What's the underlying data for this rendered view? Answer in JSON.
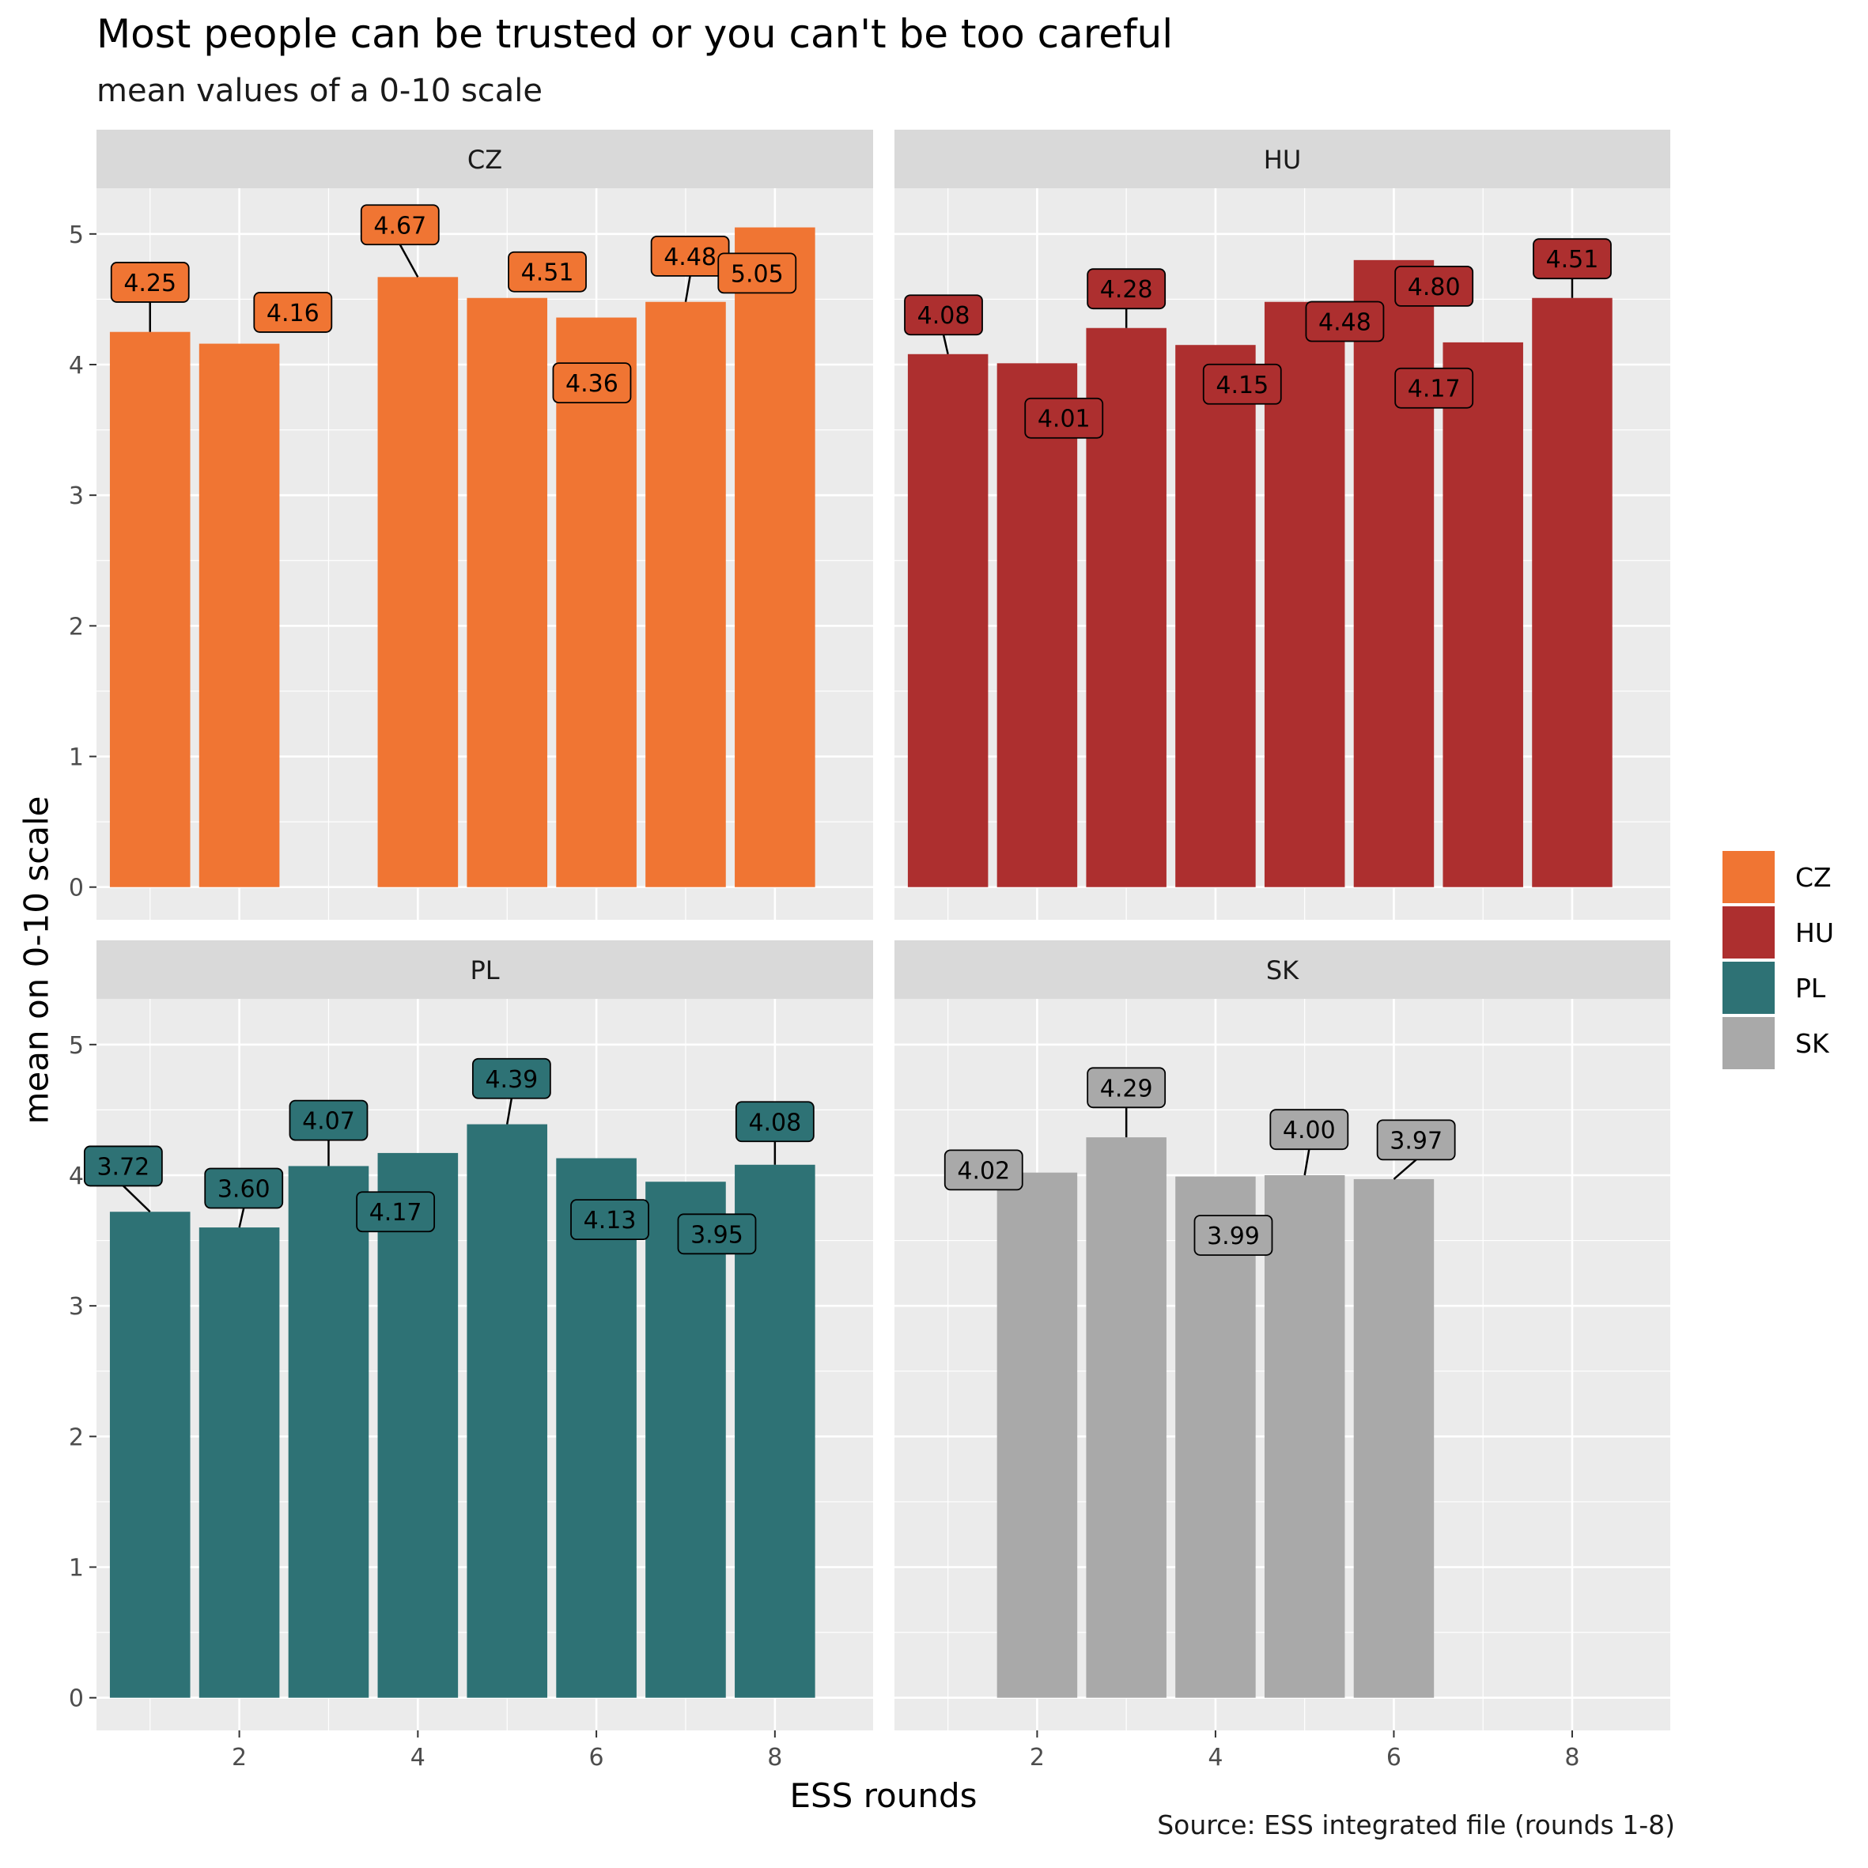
{
  "title": "Most people can be trusted or you can't be too careful",
  "subtitle": "mean values of a 0-10 scale",
  "caption": "Source: ESS integrated file (rounds 1-8)",
  "chart_data": {
    "type": "bar",
    "title": "Most people can be trusted or you can't be too careful",
    "subtitle": "mean values of a 0-10 scale",
    "xlabel": "ESS rounds",
    "ylabel": "mean on 0-10 scale",
    "xlim": [
      0.4,
      9.1
    ],
    "ylim": [
      -0.25,
      5.35
    ],
    "x_ticks": [
      2,
      4,
      6,
      8
    ],
    "y_ticks": [
      0,
      1,
      2,
      3,
      4,
      5
    ],
    "grid": true,
    "legend": {
      "placement": "right",
      "entries": [
        "CZ",
        "HU",
        "PL",
        "SK"
      ]
    },
    "panels": [
      {
        "name": "CZ",
        "color": "#F07533",
        "x": [
          1,
          2,
          4,
          5,
          6,
          7,
          8
        ],
        "values": [
          4.25,
          4.16,
          4.67,
          4.51,
          4.36,
          4.48,
          5.05
        ],
        "labels": [
          "4.25",
          "4.16",
          "4.67",
          "4.51",
          "4.36",
          "4.48",
          "5.05"
        ]
      },
      {
        "name": "HU",
        "color": "#AD2F2F",
        "x": [
          1,
          2,
          3,
          4,
          5,
          6,
          7,
          8
        ],
        "values": [
          4.08,
          4.01,
          4.28,
          4.15,
          4.48,
          4.8,
          4.17,
          4.51
        ],
        "labels": [
          "4.08",
          "4.01",
          "4.28",
          "4.15",
          "4.48",
          "4.80",
          "4.17",
          "4.51"
        ]
      },
      {
        "name": "PL",
        "color": "#2E7275",
        "x": [
          1,
          2,
          3,
          4,
          5,
          6,
          7,
          8
        ],
        "values": [
          3.72,
          3.6,
          4.07,
          4.17,
          4.39,
          4.13,
          3.95,
          4.08
        ],
        "labels": [
          "3.72",
          "3.60",
          "4.07",
          "4.17",
          "4.39",
          "4.13",
          "3.95",
          "4.08"
        ]
      },
      {
        "name": "SK",
        "color": "#A9A9A9",
        "x": [
          2,
          3,
          4,
          5,
          6
        ],
        "values": [
          4.02,
          4.29,
          3.99,
          4.0,
          3.97
        ],
        "labels": [
          "4.02",
          "4.29",
          "3.99",
          "4.00",
          "3.97"
        ]
      }
    ]
  }
}
